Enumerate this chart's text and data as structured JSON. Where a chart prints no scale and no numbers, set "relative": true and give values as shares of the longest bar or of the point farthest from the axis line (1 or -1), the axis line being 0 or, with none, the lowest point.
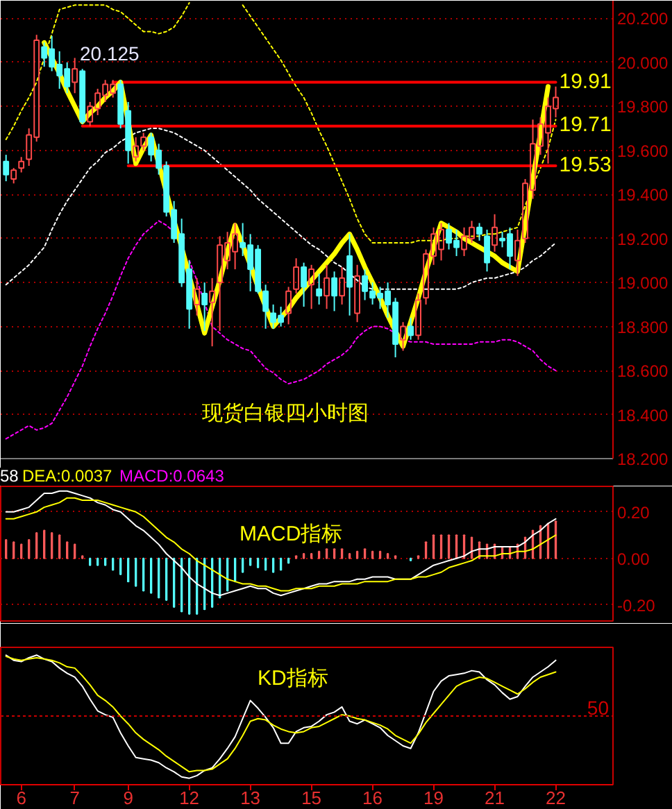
{
  "chart_data": [
    {
      "type": "candlestick",
      "title": "现货白银四小时图",
      "categories": [
        null,
        null,
        "6",
        null,
        null,
        null,
        null,
        null,
        null,
        "7",
        null,
        null,
        null,
        null,
        null,
        null,
        "9",
        null,
        null,
        null,
        null,
        null,
        null,
        null,
        "12",
        null,
        null,
        null,
        null,
        null,
        null,
        null,
        "13",
        null,
        null,
        null,
        null,
        null,
        null,
        null,
        "15",
        null,
        null,
        null,
        null,
        null,
        null,
        null,
        "16",
        null,
        null,
        null,
        null,
        null,
        null,
        null,
        "19",
        null,
        null,
        null,
        null,
        null,
        null,
        null,
        "21",
        null,
        null,
        null,
        null,
        null,
        null,
        null,
        "22"
      ],
      "ohlc": [
        [
          19.55,
          19.58,
          19.46,
          19.49
        ],
        [
          19.47,
          19.52,
          19.45,
          19.51
        ],
        [
          19.52,
          19.57,
          19.5,
          19.55
        ],
        [
          19.56,
          19.7,
          19.53,
          19.67
        ],
        [
          19.66,
          20.125,
          19.64,
          20.1
        ],
        [
          20.07,
          20.09,
          19.98,
          20.02
        ],
        [
          20.06,
          20.12,
          19.96,
          19.98
        ],
        [
          19.99,
          20.05,
          19.88,
          19.94
        ],
        [
          19.97,
          20.0,
          19.86,
          19.89
        ],
        [
          19.91,
          20.02,
          19.86,
          19.97
        ],
        [
          19.96,
          19.97,
          19.72,
          19.73
        ],
        [
          19.73,
          19.82,
          19.71,
          19.8
        ],
        [
          19.79,
          19.88,
          19.76,
          19.86
        ],
        [
          19.85,
          19.92,
          19.82,
          19.9
        ],
        [
          19.86,
          19.92,
          19.84,
          19.9
        ],
        [
          19.9,
          19.92,
          19.7,
          19.72
        ],
        [
          19.78,
          19.82,
          19.54,
          19.6
        ],
        [
          19.57,
          19.66,
          19.55,
          19.62
        ],
        [
          19.62,
          19.68,
          19.6,
          19.66
        ],
        [
          19.66,
          19.68,
          19.55,
          19.58
        ],
        [
          19.6,
          19.63,
          19.49,
          19.52
        ],
        [
          19.53,
          19.55,
          19.3,
          19.32
        ],
        [
          19.33,
          19.37,
          19.18,
          19.2
        ],
        [
          19.22,
          19.29,
          18.98,
          19.0
        ],
        [
          19.06,
          19.1,
          18.79,
          18.88
        ],
        [
          18.9,
          19.02,
          18.85,
          18.97
        ],
        [
          18.95,
          19.0,
          18.78,
          18.9
        ],
        [
          18.91,
          19.02,
          18.71,
          18.96
        ],
        [
          19.0,
          19.21,
          18.78,
          19.17
        ],
        [
          19.1,
          19.23,
          19.06,
          19.18
        ],
        [
          19.14,
          19.27,
          19.06,
          19.22
        ],
        [
          19.18,
          19.27,
          19.12,
          19.16
        ],
        [
          19.17,
          19.22,
          18.96,
          19.06
        ],
        [
          19.15,
          19.17,
          18.95,
          18.96
        ],
        [
          18.96,
          18.99,
          18.79,
          18.87
        ],
        [
          18.86,
          18.9,
          18.79,
          18.82
        ],
        [
          18.85,
          18.89,
          18.8,
          18.82
        ],
        [
          18.86,
          18.98,
          18.81,
          18.96
        ],
        [
          18.97,
          19.11,
          18.95,
          19.07
        ],
        [
          19.07,
          19.09,
          18.89,
          18.98
        ],
        [
          18.99,
          19.08,
          18.88,
          19.06
        ],
        [
          18.97,
          19.04,
          18.9,
          18.94
        ],
        [
          18.94,
          19.08,
          18.88,
          19.02
        ],
        [
          19.02,
          19.05,
          18.87,
          18.94
        ],
        [
          18.94,
          19.07,
          18.9,
          19.02
        ],
        [
          19.12,
          19.22,
          18.85,
          18.98
        ],
        [
          18.86,
          19.08,
          18.82,
          19.03
        ],
        [
          19.03,
          19.06,
          18.92,
          18.96
        ],
        [
          18.96,
          19.0,
          18.9,
          18.93
        ],
        [
          18.95,
          18.98,
          18.88,
          18.93
        ],
        [
          18.96,
          19.0,
          18.84,
          18.9
        ],
        [
          18.91,
          18.93,
          18.66,
          18.72
        ],
        [
          18.74,
          18.82,
          18.69,
          18.8
        ],
        [
          18.8,
          18.84,
          18.74,
          18.76
        ],
        [
          18.76,
          18.95,
          18.74,
          18.92
        ],
        [
          18.93,
          19.15,
          18.9,
          19.13
        ],
        [
          19.12,
          19.25,
          19.08,
          19.22
        ],
        [
          19.15,
          19.27,
          19.1,
          19.24
        ],
        [
          19.24,
          19.27,
          19.15,
          19.18
        ],
        [
          19.19,
          19.24,
          19.12,
          19.16
        ],
        [
          19.15,
          19.25,
          19.12,
          19.21
        ],
        [
          19.2,
          19.28,
          19.18,
          19.25
        ],
        [
          19.25,
          19.27,
          19.19,
          19.22
        ],
        [
          19.21,
          19.24,
          19.05,
          19.09
        ],
        [
          19.17,
          19.31,
          19.14,
          19.25
        ],
        [
          19.2,
          19.23,
          19.16,
          19.19
        ],
        [
          19.22,
          19.25,
          19.06,
          19.12
        ],
        [
          19.1,
          19.24,
          19.03,
          19.19
        ],
        [
          19.2,
          19.47,
          19.18,
          19.45
        ],
        [
          19.42,
          19.74,
          19.38,
          19.63
        ],
        [
          19.62,
          19.75,
          19.58,
          19.72
        ],
        [
          19.68,
          19.84,
          19.54,
          19.8
        ],
        [
          19.79,
          19.89,
          19.75,
          19.84
        ]
      ],
      "ylim": [
        18.2,
        20.28
      ],
      "yticks": [
        {
          "value": 18.2,
          "label": "18.200"
        },
        {
          "value": 18.4,
          "label": "18.400"
        },
        {
          "value": 18.6,
          "label": "18.600"
        },
        {
          "value": 18.8,
          "label": "18.800"
        },
        {
          "value": 19,
          "label": "19.000"
        },
        {
          "value": 19.2,
          "label": "19.200"
        },
        {
          "value": 19.4,
          "label": "19.400"
        },
        {
          "value": 19.6,
          "label": "19.600"
        },
        {
          "value": 19.8,
          "label": "19.800"
        },
        {
          "value": 20,
          "label": "20.000"
        },
        {
          "value": 20.2,
          "label": "20.200"
        }
      ],
      "grid": "y",
      "tick_labels": "y",
      "annotations": [
        "20.125"
      ],
      "series": [
        {
          "type": "line",
          "color": "#ffff00",
          "line_style": "dotted",
          "values": [
            19.65,
            19.71,
            19.78,
            19.84,
            19.91,
            20.02,
            20.13,
            20.24,
            20.25,
            20.26,
            20.26,
            20.26,
            20.26,
            20.26,
            20.24,
            20.23,
            20.2,
            20.17,
            20.14,
            20.14,
            20.13,
            20.14,
            20.16,
            20.21,
            20.27,
            null,
            null,
            null,
            null,
            null,
            null,
            20.26,
            20.21,
            20.16,
            20.11,
            20.06,
            20.01,
            19.95,
            19.89,
            19.84,
            19.77,
            19.69,
            19.62,
            19.54,
            19.46,
            19.38,
            19.29,
            19.22,
            19.18,
            19.18,
            19.18,
            19.18,
            19.18,
            19.18,
            19.19,
            19.19,
            19.19,
            19.19,
            19.2,
            19.2,
            19.21,
            19.21,
            19.21,
            19.22,
            19.22,
            19.23,
            19.24,
            19.25,
            19.35,
            19.44,
            19.52,
            19.61,
            19.74
          ]
        },
        {
          "type": "line",
          "color": "#ffffff",
          "line_style": "dotted",
          "values": [
            18.99,
            19.02,
            19.05,
            19.08,
            19.12,
            19.16,
            19.24,
            19.31,
            19.37,
            19.42,
            19.47,
            19.52,
            19.55,
            19.59,
            19.61,
            19.64,
            19.66,
            19.68,
            19.69,
            19.7,
            19.7,
            19.69,
            19.68,
            19.66,
            19.64,
            19.62,
            19.6,
            19.57,
            19.54,
            19.51,
            19.48,
            19.45,
            19.42,
            19.38,
            19.35,
            19.32,
            19.29,
            19.26,
            19.23,
            19.2,
            19.17,
            19.15,
            19.12,
            19.09,
            19.07,
            19.04,
            19.01,
            18.98,
            18.97,
            18.97,
            18.97,
            18.97,
            18.97,
            18.97,
            18.97,
            18.97,
            18.97,
            18.97,
            18.97,
            18.97,
            18.98,
            19.0,
            19.01,
            19.02,
            19.02,
            19.03,
            19.04,
            19.05,
            19.07,
            19.1,
            19.12,
            19.15,
            19.18
          ]
        },
        {
          "type": "line",
          "color": "#ff00ff",
          "line_style": "dotted",
          "values": [
            18.29,
            18.31,
            18.33,
            18.35,
            18.33,
            18.34,
            18.36,
            18.42,
            18.48,
            18.55,
            18.62,
            18.71,
            18.79,
            18.86,
            18.94,
            19.03,
            19.11,
            19.17,
            19.22,
            19.25,
            19.28,
            19.26,
            19.23,
            null,
            19.1,
            19.01,
            18.91,
            18.8,
            18.77,
            18.74,
            18.72,
            18.7,
            18.69,
            18.65,
            18.61,
            18.59,
            18.56,
            18.54,
            18.55,
            18.56,
            18.58,
            18.6,
            18.63,
            18.65,
            18.67,
            18.7,
            18.75,
            18.78,
            18.8,
            18.8,
            18.79,
            18.77,
            18.74,
            18.73,
            18.73,
            18.73,
            18.72,
            18.72,
            18.72,
            18.72,
            18.72,
            18.72,
            18.73,
            18.73,
            18.73,
            18.74,
            18.74,
            18.73,
            18.71,
            18.69,
            18.65,
            18.62,
            18.6
          ]
        },
        {
          "type": "line",
          "color": "#ff0000",
          "values": [
            null,
            null,
            null,
            null,
            null,
            null,
            null,
            null,
            null,
            null,
            null,
            null,
            null,
            null,
            19.91,
            19.91,
            19.91,
            19.91,
            19.91,
            19.91,
            19.91,
            19.91,
            19.91,
            19.91,
            19.91,
            19.91,
            19.91,
            19.91,
            19.91,
            19.91,
            19.91,
            19.91,
            19.91,
            19.91,
            19.91,
            19.91,
            19.91,
            19.91,
            19.91,
            19.91,
            19.91,
            19.91,
            19.91,
            19.91,
            19.91,
            19.91,
            19.91,
            19.91,
            19.91,
            19.91,
            19.91,
            19.91,
            19.91,
            19.91,
            19.91,
            19.91,
            19.91,
            19.91,
            19.91,
            19.91,
            19.91,
            19.91,
            19.91,
            19.91,
            19.91,
            19.91,
            19.91,
            19.91,
            19.91,
            19.91,
            19.91,
            19.91,
            19.91
          ],
          "value_labels": [
            null,
            null,
            null,
            null,
            null,
            null,
            null,
            null,
            null,
            null,
            null,
            null,
            null,
            null,
            null,
            null,
            null,
            null,
            null,
            null,
            null,
            null,
            null,
            null,
            null,
            null,
            null,
            null,
            null,
            null,
            null,
            null,
            null,
            null,
            null,
            null,
            null,
            null,
            null,
            null,
            null,
            null,
            null,
            null,
            null,
            null,
            null,
            null,
            null,
            null,
            null,
            null,
            null,
            null,
            null,
            null,
            null,
            null,
            null,
            null,
            null,
            null,
            null,
            null,
            null,
            null,
            null,
            null,
            null,
            null,
            null,
            null,
            "19.91"
          ]
        },
        {
          "type": "line",
          "color": "#ff0000",
          "values": [
            null,
            null,
            null,
            null,
            null,
            null,
            null,
            null,
            null,
            null,
            19.71,
            19.71,
            19.71,
            19.71,
            19.71,
            19.71,
            19.71,
            19.71,
            19.71,
            19.71,
            19.71,
            19.71,
            19.71,
            19.71,
            19.71,
            19.71,
            19.71,
            19.71,
            19.71,
            19.71,
            19.71,
            19.71,
            19.71,
            19.71,
            19.71,
            19.71,
            19.71,
            19.71,
            19.71,
            19.71,
            19.71,
            19.71,
            19.71,
            19.71,
            19.71,
            19.71,
            19.71,
            19.71,
            19.71,
            19.71,
            19.71,
            19.71,
            19.71,
            19.71,
            19.71,
            19.71,
            19.71,
            19.71,
            19.71,
            19.71,
            19.71,
            19.71,
            19.71,
            19.71,
            19.71,
            19.71,
            19.71,
            19.71,
            19.71,
            19.71,
            19.71,
            19.71,
            19.71
          ],
          "value_labels": [
            null,
            null,
            null,
            null,
            null,
            null,
            null,
            null,
            null,
            null,
            null,
            null,
            null,
            null,
            null,
            null,
            null,
            null,
            null,
            null,
            null,
            null,
            null,
            null,
            null,
            null,
            null,
            null,
            null,
            null,
            null,
            null,
            null,
            null,
            null,
            null,
            null,
            null,
            null,
            null,
            null,
            null,
            null,
            null,
            null,
            null,
            null,
            null,
            null,
            null,
            null,
            null,
            null,
            null,
            null,
            null,
            null,
            null,
            null,
            null,
            null,
            null,
            null,
            null,
            null,
            null,
            null,
            null,
            null,
            null,
            null,
            null,
            "19.71"
          ]
        },
        {
          "type": "line",
          "color": "#ff0000",
          "values": [
            null,
            null,
            null,
            null,
            null,
            null,
            null,
            null,
            null,
            null,
            null,
            null,
            null,
            null,
            null,
            null,
            19.53,
            19.53,
            19.53,
            19.53,
            19.53,
            19.53,
            19.53,
            19.53,
            19.53,
            19.53,
            19.53,
            19.53,
            19.53,
            19.53,
            19.53,
            19.53,
            19.53,
            19.53,
            19.53,
            19.53,
            19.53,
            19.53,
            19.53,
            19.53,
            19.53,
            19.53,
            19.53,
            19.53,
            19.53,
            19.53,
            19.53,
            19.53,
            19.53,
            19.53,
            19.53,
            19.53,
            19.53,
            19.53,
            19.53,
            19.53,
            19.53,
            19.53,
            19.53,
            19.53,
            19.53,
            19.53,
            19.53,
            19.53,
            19.53,
            19.53,
            19.53,
            19.53,
            19.53,
            19.53,
            19.53,
            19.53,
            19.53
          ],
          "value_labels": [
            null,
            null,
            null,
            null,
            null,
            null,
            null,
            null,
            null,
            null,
            null,
            null,
            null,
            null,
            null,
            null,
            null,
            null,
            null,
            null,
            null,
            null,
            null,
            null,
            null,
            null,
            null,
            null,
            null,
            null,
            null,
            null,
            null,
            null,
            null,
            null,
            null,
            null,
            null,
            null,
            null,
            null,
            null,
            null,
            null,
            null,
            null,
            null,
            null,
            null,
            null,
            null,
            null,
            null,
            null,
            null,
            null,
            null,
            null,
            null,
            null,
            null,
            null,
            null,
            null,
            null,
            null,
            null,
            null,
            null,
            null,
            null,
            "19.53"
          ]
        },
        {
          "type": "line",
          "color": "#ffff00",
          "values": [
            null,
            null,
            null,
            null,
            null,
            20.09,
            20.02,
            19.95,
            19.87,
            19.8,
            19.73,
            19.77,
            19.8,
            19.84,
            19.87,
            19.91,
            19.73,
            19.54,
            19.61,
            19.67,
            19.54,
            19.41,
            19.28,
            19.16,
            19.03,
            18.9,
            18.77,
            18.89,
            19.01,
            19.14,
            19.26,
            19.17,
            19.08,
            18.98,
            18.89,
            18.8,
            18.84,
            18.88,
            18.93,
            18.97,
            19.01,
            19.05,
            19.09,
            19.13,
            19.18,
            19.22,
            19.15,
            19.07,
            19.0,
            18.93,
            18.85,
            18.78,
            18.71,
            18.82,
            18.93,
            19.05,
            19.16,
            19.27,
            19.25,
            19.23,
            19.2,
            19.18,
            19.16,
            19.14,
            19.12,
            19.09,
            19.07,
            19.05,
            19.26,
            19.47,
            19.68,
            19.89,
            null
          ]
        }
      ]
    },
    {
      "type": "line",
      "title": "MACD指标",
      "annotations": [
        "58",
        "DEA:0.0037",
        "MACD:0.0643"
      ],
      "categories": [
        null,
        null,
        "6",
        null,
        null,
        null,
        null,
        null,
        null,
        "7",
        null,
        null,
        null,
        null,
        null,
        null,
        "9",
        null,
        null,
        null,
        null,
        null,
        null,
        null,
        "12",
        null,
        null,
        null,
        null,
        null,
        null,
        null,
        "13",
        null,
        null,
        null,
        null,
        null,
        null,
        null,
        "15",
        null,
        null,
        null,
        null,
        null,
        null,
        null,
        "16",
        null,
        null,
        null,
        null,
        null,
        null,
        null,
        "19",
        null,
        null,
        null,
        null,
        null,
        null,
        null,
        "21",
        null,
        null,
        null,
        null,
        null,
        null,
        null,
        "22"
      ],
      "ylim": [
        -0.27,
        0.31
      ],
      "yticks": [
        {
          "value": 0.2,
          "label": "0.20"
        },
        {
          "value": 0,
          "label": "0.00"
        },
        {
          "value": -0.2,
          "label": "-0.20"
        }
      ],
      "grid": "y",
      "tick_labels": "y",
      "series": [
        {
          "type": "bar",
          "values": [
            0.08,
            0.07,
            0.06,
            0.08,
            0.11,
            0.12,
            0.11,
            0.1,
            0.07,
            0.06,
            0.01,
            -0.03,
            -0.03,
            -0.03,
            -0.05,
            -0.07,
            -0.1,
            -0.12,
            -0.14,
            -0.15,
            -0.17,
            -0.18,
            -0.21,
            -0.23,
            -0.24,
            -0.24,
            -0.22,
            -0.21,
            -0.17,
            -0.14,
            -0.1,
            -0.06,
            -0.03,
            -0.04,
            -0.05,
            -0.06,
            -0.05,
            -0.02,
            0.01,
            0.02,
            0.02,
            0.03,
            0.04,
            0.04,
            0.04,
            0.02,
            0.03,
            0.04,
            0.03,
            0.03,
            0.02,
            0.01,
            null,
            -0.01,
            0.01,
            0.07,
            0.1,
            0.1,
            0.1,
            0.1,
            0.1,
            0.09,
            0.07,
            0.06,
            0.06,
            0.05,
            0.05,
            0.06,
            0.09,
            0.12,
            0.14,
            0.15,
            0.16
          ],
          "colors": [
            "#ff5a5a",
            "#ff5a5a",
            "#ff5a5a",
            "#ff5a5a",
            "#ff5a5a",
            "#ff5a5a",
            "#ff5a5a",
            "#ff5a5a",
            "#ff5a5a",
            "#ff5a5a",
            "#ff5a5a",
            "#54fcfc",
            "#54fcfc",
            "#54fcfc",
            "#54fcfc",
            "#54fcfc",
            "#54fcfc",
            "#54fcfc",
            "#54fcfc",
            "#54fcfc",
            "#54fcfc",
            "#54fcfc",
            "#54fcfc",
            "#54fcfc",
            "#54fcfc",
            "#54fcfc",
            "#54fcfc",
            "#54fcfc",
            "#54fcfc",
            "#54fcfc",
            "#54fcfc",
            "#54fcfc",
            "#54fcfc",
            "#54fcfc",
            "#54fcfc",
            "#54fcfc",
            "#54fcfc",
            "#54fcfc",
            "#ff5a5a",
            "#ff5a5a",
            "#ff5a5a",
            "#ff5a5a",
            "#ff5a5a",
            "#ff5a5a",
            "#ff5a5a",
            "#ff5a5a",
            "#ff5a5a",
            "#ff5a5a",
            "#ff5a5a",
            "#ff5a5a",
            "#ff5a5a",
            "#ff5a5a",
            "#ff5a5a",
            "#54fcfc",
            "#ff5a5a",
            "#ff5a5a",
            "#ff5a5a",
            "#ff5a5a",
            "#ff5a5a",
            "#ff5a5a",
            "#ff5a5a",
            "#ff5a5a",
            "#ff5a5a",
            "#ff5a5a",
            "#ff5a5a",
            "#ff5a5a",
            "#ff5a5a",
            "#ff5a5a",
            "#ff5a5a",
            "#ff5a5a",
            "#ff5a5a",
            "#ff5a5a",
            "#ff5a5a"
          ]
        },
        {
          "type": "line",
          "color": "#ffffff",
          "values": [
            0.2,
            0.2,
            0.21,
            0.22,
            0.25,
            0.28,
            0.28,
            0.29,
            0.29,
            0.28,
            0.27,
            0.26,
            0.24,
            0.23,
            0.21,
            0.2,
            0.17,
            0.14,
            0.12,
            0.09,
            0.06,
            0.02,
            -0.01,
            -0.04,
            -0.08,
            -0.11,
            -0.13,
            -0.15,
            -0.16,
            -0.15,
            -0.14,
            -0.13,
            -0.12,
            -0.13,
            -0.13,
            -0.15,
            -0.16,
            -0.15,
            -0.14,
            -0.13,
            -0.12,
            -0.11,
            -0.11,
            -0.1,
            -0.1,
            -0.1,
            -0.09,
            -0.09,
            -0.08,
            -0.08,
            -0.08,
            -0.09,
            -0.09,
            -0.09,
            -0.07,
            -0.05,
            -0.03,
            -0.02,
            -0.01,
            0.0,
            0.01,
            0.03,
            0.04,
            0.04,
            0.05,
            0.05,
            0.05,
            0.05,
            0.07,
            0.1,
            0.12,
            0.15,
            0.17
          ]
        },
        {
          "type": "line",
          "color": "#ffff00",
          "values": [
            0.17,
            0.17,
            0.18,
            0.19,
            0.2,
            0.22,
            0.23,
            0.24,
            0.26,
            0.26,
            0.25,
            0.25,
            0.25,
            0.24,
            0.23,
            0.22,
            0.21,
            0.2,
            0.18,
            0.15,
            0.12,
            0.09,
            0.07,
            0.04,
            0.02,
            -0.01,
            -0.03,
            -0.05,
            -0.07,
            -0.09,
            -0.1,
            -0.11,
            -0.11,
            -0.12,
            -0.12,
            -0.13,
            -0.14,
            -0.14,
            -0.13,
            -0.13,
            -0.13,
            -0.12,
            -0.12,
            -0.12,
            -0.11,
            -0.11,
            -0.11,
            -0.1,
            -0.1,
            -0.1,
            -0.1,
            -0.09,
            -0.09,
            -0.09,
            -0.08,
            -0.08,
            -0.07,
            -0.06,
            -0.04,
            -0.03,
            -0.02,
            -0.01,
            0.01,
            0.01,
            0.01,
            0.02,
            0.02,
            0.03,
            0.03,
            0.04,
            0.06,
            0.08,
            0.1
          ]
        }
      ]
    },
    {
      "type": "line",
      "title": "KD指标",
      "relative": true,
      "annotations": [
        "50"
      ],
      "categories": [
        null,
        null,
        "6",
        null,
        null,
        null,
        null,
        null,
        null,
        "7",
        null,
        null,
        null,
        null,
        null,
        null,
        "9",
        null,
        null,
        null,
        null,
        null,
        null,
        null,
        "12",
        null,
        null,
        null,
        null,
        null,
        null,
        null,
        "13",
        null,
        null,
        null,
        null,
        null,
        null,
        null,
        "15",
        null,
        null,
        null,
        null,
        null,
        null,
        null,
        "16",
        null,
        null,
        null,
        null,
        null,
        null,
        null,
        "19",
        null,
        null,
        null,
        null,
        null,
        null,
        null,
        "21",
        null,
        null,
        null,
        null,
        null,
        null,
        null,
        "22"
      ],
      "tick_labels": "x",
      "ref_lines": [
        {
          "axis": "y",
          "value": 0.53,
          "color": "#c80000",
          "line_style": "dotted"
        }
      ],
      "series": [
        {
          "type": "line",
          "color": "#ffffff",
          "values": [
            1.0,
            0.96,
            0.95,
            0.98,
            1.0,
            0.97,
            0.95,
            0.9,
            0.86,
            0.83,
            0.76,
            0.66,
            0.57,
            0.54,
            0.52,
            0.4,
            0.3,
            0.21,
            0.2,
            0.19,
            0.17,
            0.13,
            0.1,
            0.06,
            0.05,
            0.07,
            0.11,
            0.13,
            0.2,
            0.28,
            0.37,
            0.51,
            0.65,
            0.59,
            0.52,
            0.44,
            0.32,
            0.32,
            0.41,
            0.44,
            0.45,
            0.49,
            0.54,
            0.56,
            0.6,
            0.49,
            0.47,
            0.5,
            0.47,
            0.44,
            0.38,
            0.34,
            0.3,
            0.28,
            0.4,
            0.56,
            0.72,
            0.8,
            0.84,
            0.85,
            0.86,
            0.88,
            0.87,
            0.81,
            0.77,
            0.71,
            0.66,
            0.68,
            0.76,
            0.83,
            0.87,
            0.91,
            0.96
          ]
        },
        {
          "type": "line",
          "color": "#ffff00",
          "values": [
            0.99,
            0.97,
            0.96,
            0.97,
            0.98,
            0.97,
            0.96,
            0.94,
            0.91,
            0.9,
            0.84,
            0.77,
            0.69,
            0.65,
            0.6,
            0.53,
            0.47,
            0.4,
            0.35,
            0.31,
            0.27,
            0.22,
            0.18,
            0.14,
            0.1,
            0.11,
            0.11,
            0.12,
            0.16,
            0.2,
            0.28,
            0.38,
            0.49,
            0.51,
            0.5,
            0.46,
            0.43,
            0.41,
            0.4,
            0.41,
            0.44,
            0.45,
            0.48,
            0.51,
            0.54,
            0.53,
            0.51,
            0.5,
            0.48,
            0.46,
            0.43,
            0.38,
            0.35,
            0.32,
            0.39,
            0.48,
            0.55,
            0.62,
            0.69,
            0.76,
            0.79,
            0.81,
            0.83,
            0.82,
            0.79,
            0.76,
            0.73,
            0.7,
            0.74,
            0.79,
            0.83,
            0.85,
            0.87
          ]
        }
      ]
    }
  ]
}
